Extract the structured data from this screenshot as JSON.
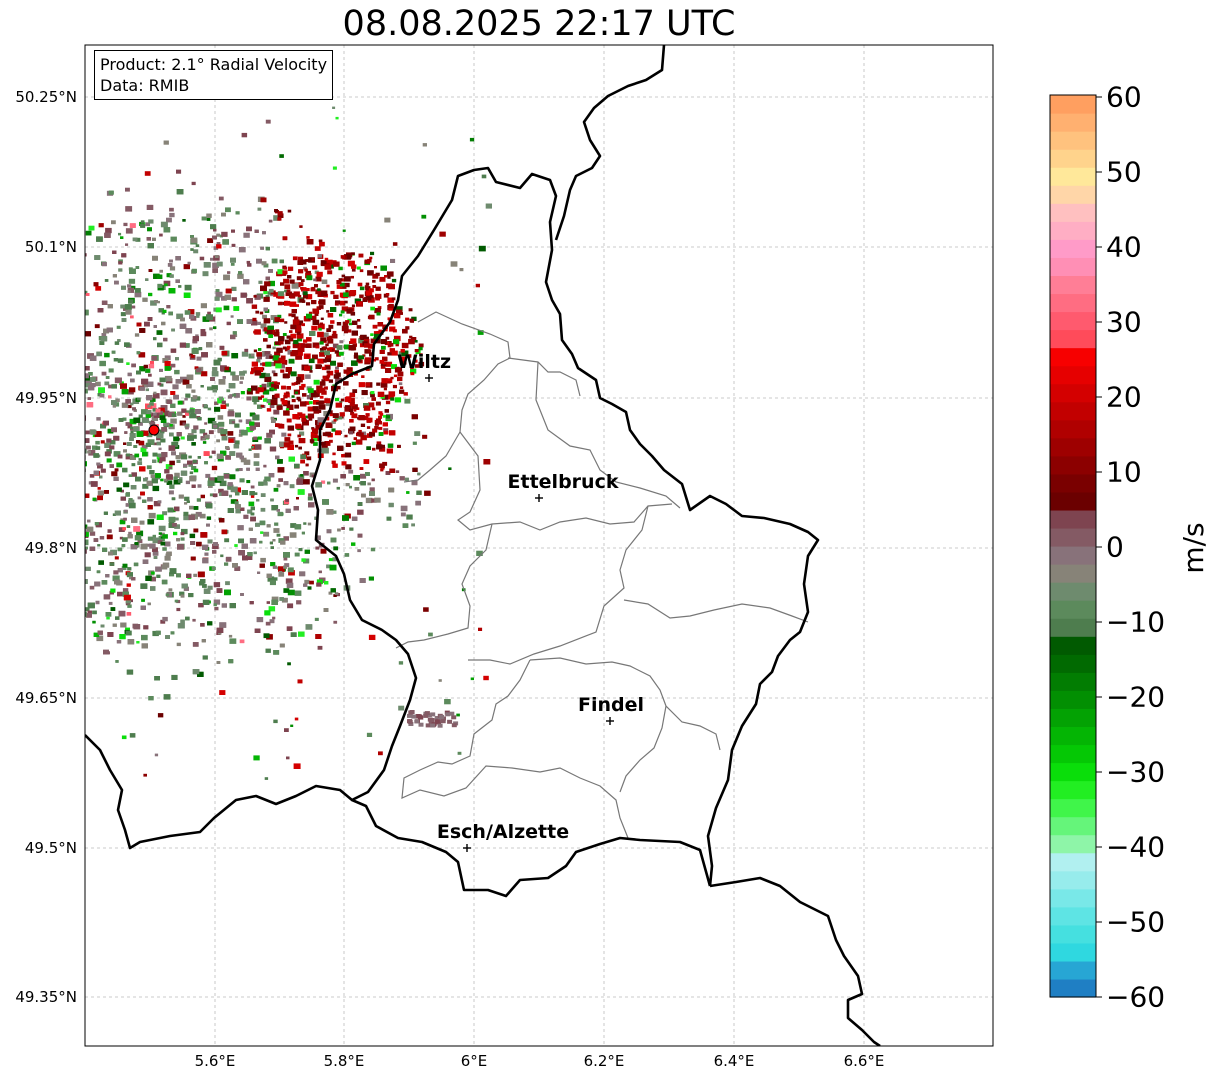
{
  "title": "08.08.2025 22:17 UTC",
  "info": {
    "product": "Product: 2.1° Radial Velocity",
    "data": "Data: RMIB"
  },
  "axes": {
    "lat_ticks": [
      "50.25°N",
      "50.1°N",
      "49.95°N",
      "49.8°N",
      "49.65°N",
      "49.5°N",
      "49.35°N"
    ],
    "lon_ticks": [
      "5.6°E",
      "5.8°E",
      "6°E",
      "6.2°E",
      "6.4°E",
      "6.6°E"
    ]
  },
  "colorbar": {
    "label": "m/s",
    "ticks": [
      "60",
      "50",
      "40",
      "30",
      "20",
      "10",
      "0",
      "−10",
      "−20",
      "−30",
      "−40",
      "−50",
      "−60"
    ],
    "range": [
      -60,
      60
    ],
    "colors": [
      "#1f7fc4",
      "#27a6d4",
      "#2fd8e0",
      "#45e0e0",
      "#5ee4e4",
      "#79e8e8",
      "#97ecec",
      "#b1f0f0",
      "#8ef5a8",
      "#65f57a",
      "#40f54a",
      "#22ee22",
      "#0ade0a",
      "#05c805",
      "#04b504",
      "#03a203",
      "#028f02",
      "#027d02",
      "#016a01",
      "#015a01",
      "#4e7d4e",
      "#5c8a5c",
      "#6e8b6e",
      "#878378",
      "#88727a",
      "#845a64",
      "#7e4450",
      "#6b0000",
      "#7a0000",
      "#8c0000",
      "#9e0000",
      "#b00000",
      "#c20000",
      "#d40000",
      "#e60000",
      "#f70000",
      "#ff4b5a",
      "#ff5a6e",
      "#ff6d82",
      "#ff7e96",
      "#ff8fb5",
      "#ff9bc8",
      "#ffaec4",
      "#ffc0c0",
      "#ffd6a8",
      "#ffe89a",
      "#ffd38c",
      "#ffc27e",
      "#ffb070",
      "#ff9f60"
    ]
  },
  "cities": [
    {
      "name": "Wiltz"
    },
    {
      "name": "Ettelbruck"
    },
    {
      "name": "Findel"
    },
    {
      "name": "Esch/Alzette"
    }
  ],
  "radar_site": {
    "color": "#ff0000"
  }
}
